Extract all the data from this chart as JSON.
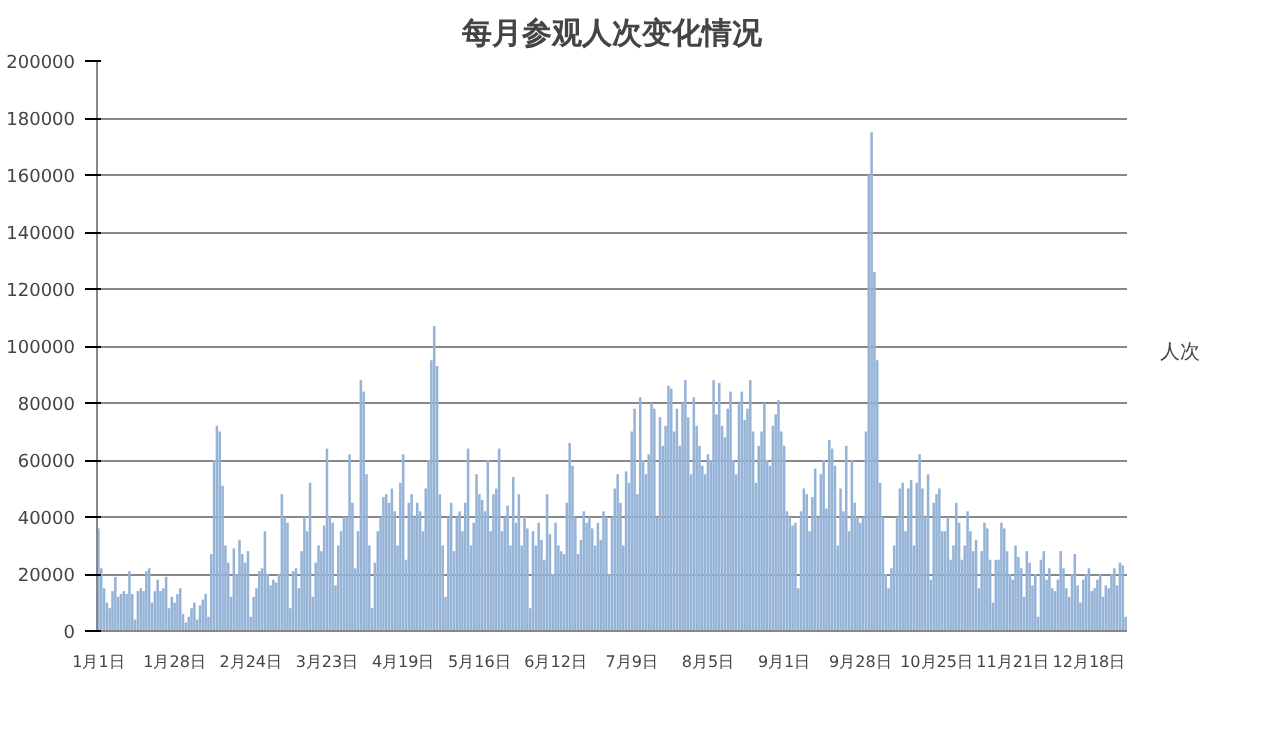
{
  "chart_data": {
    "type": "bar",
    "title": "每月参观人次变化情况",
    "categories": [
      "1月1日",
      null,
      null,
      null,
      null,
      null,
      null,
      null,
      null,
      null,
      null,
      null,
      null,
      null,
      null,
      null,
      null,
      null,
      null,
      null,
      null,
      null,
      null,
      null,
      null,
      null,
      null,
      "1月28日",
      null,
      null,
      null,
      null,
      null,
      null,
      null,
      null,
      null,
      null,
      null,
      null,
      null,
      null,
      null,
      null,
      null,
      null,
      null,
      null,
      null,
      null,
      null,
      null,
      null,
      null,
      "2月24日",
      null,
      null,
      null,
      null,
      null,
      null,
      null,
      null,
      null,
      null,
      null,
      null,
      null,
      null,
      null,
      null,
      null,
      null,
      null,
      null,
      null,
      null,
      null,
      null,
      null,
      null,
      "3月23日",
      null,
      null,
      null,
      null,
      null,
      null,
      null,
      null,
      null,
      null,
      null,
      null,
      null,
      null,
      null,
      null,
      null,
      null,
      null,
      null,
      null,
      null,
      null,
      null,
      null,
      null,
      "4月19日",
      null,
      null,
      null,
      null,
      null,
      null,
      null,
      null,
      null,
      null,
      null,
      null,
      null,
      null,
      null,
      null,
      null,
      null,
      null,
      null,
      null,
      null,
      null,
      null,
      null,
      null,
      "5月16日",
      null,
      null,
      null,
      null,
      null,
      null,
      null,
      null,
      null,
      null,
      null,
      null,
      null,
      null,
      null,
      null,
      null,
      null,
      null,
      null,
      null,
      null,
      null,
      null,
      null,
      null,
      "6月12日",
      null,
      null,
      null,
      null,
      null,
      null,
      null,
      null,
      null,
      null,
      null,
      null,
      null,
      null,
      null,
      null,
      null,
      null,
      null,
      null,
      null,
      null,
      null,
      null,
      null,
      null,
      "7月9日",
      null,
      null,
      null,
      null,
      null,
      null,
      null,
      null,
      null,
      null,
      null,
      null,
      null,
      null,
      null,
      null,
      null,
      null,
      null,
      null,
      null,
      null,
      null,
      null,
      null,
      null,
      "8月5日",
      null,
      null,
      null,
      null,
      null,
      null,
      null,
      null,
      null,
      null,
      null,
      null,
      null,
      null,
      null,
      null,
      null,
      null,
      null,
      null,
      null,
      null,
      null,
      null,
      null,
      null,
      "9月1日",
      null,
      null,
      null,
      null,
      null,
      null,
      null,
      null,
      null,
      null,
      null,
      null,
      null,
      null,
      null,
      null,
      null,
      null,
      null,
      null,
      null,
      null,
      null,
      null,
      null,
      null,
      "9月28日",
      null,
      null,
      null,
      null,
      null,
      null,
      null,
      null,
      null,
      null,
      null,
      null,
      null,
      null,
      null,
      null,
      null,
      null,
      null,
      null,
      null,
      null,
      null,
      null,
      null,
      null,
      "10月25日",
      null,
      null,
      null,
      null,
      null,
      null,
      null,
      null,
      null,
      null,
      null,
      null,
      null,
      null,
      null,
      null,
      null,
      null,
      null,
      null,
      null,
      null,
      null,
      null,
      null,
      null,
      "11月21日",
      null,
      null,
      null,
      null,
      null,
      null,
      null,
      null,
      null,
      null,
      null,
      null,
      null,
      null,
      null,
      null,
      null,
      null,
      null,
      null,
      null,
      null,
      null,
      null,
      null,
      null,
      "12月18日",
      null,
      null,
      null,
      null,
      null,
      null,
      null,
      null,
      null,
      null,
      null,
      null,
      null
    ],
    "series": [
      {
        "name": "人次",
        "color": "#95b3d7",
        "values": [
          36000,
          22000,
          15000,
          10000,
          8000,
          14000,
          19000,
          12000,
          13000,
          14000,
          13000,
          21000,
          13000,
          4000,
          14000,
          15000,
          14000,
          21000,
          22000,
          10000,
          14000,
          18000,
          14000,
          15000,
          19000,
          8000,
          12000,
          10000,
          13000,
          15000,
          6000,
          3000,
          5000,
          8000,
          10000,
          4000,
          9000,
          11000,
          13000,
          5000,
          27000,
          60000,
          72000,
          70000,
          51000,
          30000,
          24000,
          12000,
          29000,
          20000,
          32000,
          27000,
          24000,
          28000,
          5000,
          12000,
          15000,
          21000,
          22000,
          35000,
          20000,
          16000,
          18000,
          17000,
          20000,
          48000,
          40000,
          38000,
          8000,
          21000,
          22000,
          15000,
          28000,
          40000,
          35000,
          52000,
          12000,
          24000,
          30000,
          28000,
          37000,
          64000,
          40000,
          38000,
          16000,
          30000,
          35000,
          40000,
          40000,
          62000,
          45000,
          22000,
          35000,
          88000,
          84000,
          55000,
          30000,
          8000,
          24000,
          35000,
          40000,
          47000,
          48000,
          45000,
          50000,
          42000,
          30000,
          52000,
          62000,
          25000,
          45000,
          48000,
          40000,
          45000,
          42000,
          35000,
          50000,
          60000,
          95000,
          107000,
          93000,
          48000,
          30000,
          12000,
          40000,
          45000,
          28000,
          40000,
          42000,
          35000,
          45000,
          64000,
          30000,
          38000,
          55000,
          48000,
          46000,
          42000,
          60000,
          35000,
          48000,
          50000,
          64000,
          35000,
          40000,
          44000,
          30000,
          54000,
          38000,
          48000,
          30000,
          40000,
          36000,
          8000,
          35000,
          30000,
          38000,
          32000,
          25000,
          48000,
          34000,
          20000,
          38000,
          30000,
          28000,
          27000,
          45000,
          66000,
          58000,
          40000,
          27000,
          32000,
          42000,
          38000,
          40000,
          36000,
          30000,
          38000,
          32000,
          42000,
          40000,
          20000,
          40000,
          50000,
          55000,
          45000,
          30000,
          56000,
          52000,
          70000,
          78000,
          48000,
          82000,
          60000,
          55000,
          62000,
          80000,
          78000,
          40000,
          75000,
          65000,
          72000,
          86000,
          85000,
          70000,
          78000,
          65000,
          80000,
          88000,
          75000,
          55000,
          82000,
          72000,
          65000,
          58000,
          55000,
          62000,
          60000,
          88000,
          76000,
          87000,
          72000,
          68000,
          78000,
          84000,
          60000,
          55000,
          80000,
          84000,
          74000,
          78000,
          88000,
          70000,
          52000,
          65000,
          70000,
          80000,
          60000,
          58000,
          72000,
          76000,
          81000,
          70000,
          65000,
          42000,
          40000,
          37000,
          38000,
          15000,
          42000,
          50000,
          48000,
          35000,
          47000,
          57000,
          40000,
          55000,
          60000,
          43000,
          67000,
          64000,
          58000,
          30000,
          50000,
          42000,
          65000,
          35000,
          60000,
          45000,
          40000,
          38000,
          40000,
          70000,
          160000,
          175000,
          126000,
          95000,
          52000,
          40000,
          20000,
          15000,
          22000,
          30000,
          40000,
          50000,
          52000,
          35000,
          50000,
          53000,
          30000,
          52000,
          62000,
          50000,
          40000,
          55000,
          18000,
          45000,
          48000,
          50000,
          35000,
          35000,
          40000,
          25000,
          30000,
          45000,
          38000,
          25000,
          30000,
          42000,
          35000,
          28000,
          32000,
          15000,
          28000,
          38000,
          36000,
          25000,
          10000,
          25000,
          25000,
          38000,
          36000,
          28000,
          20000,
          18000,
          30000,
          26000,
          22000,
          12000,
          28000,
          24000,
          16000,
          20000,
          5000,
          25000,
          28000,
          18000,
          22000,
          15000,
          14000,
          18000,
          28000,
          22000,
          15000,
          12000,
          20000,
          27000,
          16000,
          10000,
          18000,
          20000,
          22000,
          14000,
          15000,
          18000,
          20000,
          12000,
          16000,
          15000,
          20000,
          22000,
          16000,
          24000,
          23000,
          5000
        ]
      }
    ],
    "ylim": [
      0,
      200000
    ],
    "yticks": [
      0,
      20000,
      40000,
      60000,
      80000,
      100000,
      120000,
      140000,
      160000,
      180000,
      200000
    ],
    "grid": "y",
    "legend": "right"
  }
}
